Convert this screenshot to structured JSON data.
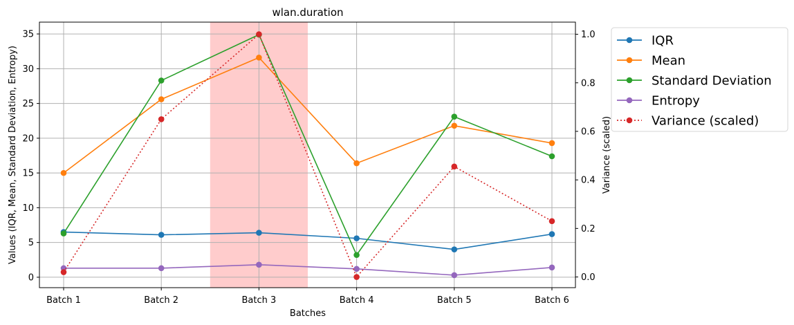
{
  "chart_data": {
    "type": "line",
    "title": "wlan.duration",
    "xlabel": "Batches",
    "ylabel": "Values (IQR, Mean, Standard Deviation, Entropy)",
    "ylabel_right": "Variance (scaled)",
    "ylabel_right_color": "#d62728",
    "categories": [
      "Batch 1",
      "Batch 2",
      "Batch 3",
      "Batch 4",
      "Batch 5",
      "Batch 6"
    ],
    "ylim": [
      -1.5,
      36.7
    ],
    "yticks": [
      "0",
      "5",
      "10",
      "15",
      "20",
      "25",
      "30",
      "35"
    ],
    "ylim_right": [
      -0.044,
      1.05
    ],
    "yticks_right": [
      "0.0",
      "0.2",
      "0.4",
      "0.6",
      "0.8",
      "1.0"
    ],
    "grid": true,
    "legend_position": "outside-top-right",
    "highlight": {
      "from": 1.5,
      "to": 2.5,
      "color": "#ffcccc"
    },
    "series": [
      {
        "name": "IQR",
        "color": "#1f77b4",
        "style": "solid",
        "axis": "left",
        "values": [
          6.5,
          6.1,
          6.4,
          5.6,
          4.0,
          6.2
        ]
      },
      {
        "name": "Mean",
        "color": "#ff7f0e",
        "style": "solid",
        "axis": "left",
        "values": [
          15.0,
          25.6,
          31.6,
          16.4,
          21.8,
          19.3
        ]
      },
      {
        "name": "Standard Deviation",
        "color": "#2ca02c",
        "style": "solid",
        "axis": "left",
        "values": [
          6.3,
          28.3,
          34.9,
          3.2,
          23.1,
          17.4
        ]
      },
      {
        "name": "Entropy",
        "color": "#9467bd",
        "style": "solid",
        "axis": "left",
        "values": [
          1.3,
          1.3,
          1.8,
          1.2,
          0.3,
          1.4
        ]
      },
      {
        "name": "Variance (scaled)",
        "color": "#d62728",
        "style": "dotted",
        "axis": "right",
        "values": [
          0.02,
          0.65,
          1.0,
          0.0,
          0.455,
          0.23
        ]
      }
    ]
  }
}
